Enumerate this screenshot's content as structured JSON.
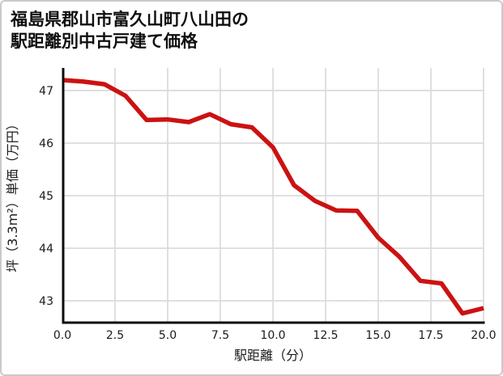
{
  "card": {
    "title_lines": [
      "福島県郡山市富久山町八山田の",
      "駅距離別中古戸建て価格"
    ]
  },
  "chart_data": {
    "type": "line",
    "title": "福島県郡山市富久山町八山田の駅距離別中古戸建て価格",
    "xlabel": "駅距離（分）",
    "ylabel": "坪（3.3m²）単価（万円）",
    "x": [
      0,
      1,
      2,
      3,
      4,
      5,
      6,
      7,
      8,
      9,
      10,
      11,
      12,
      13,
      14,
      15,
      16,
      17,
      18,
      19,
      20
    ],
    "y": [
      47.2,
      47.17,
      47.12,
      46.9,
      46.44,
      46.45,
      46.4,
      46.55,
      46.36,
      46.3,
      45.92,
      45.2,
      44.9,
      44.72,
      44.71,
      44.2,
      43.84,
      43.38,
      43.33,
      42.76,
      42.86
    ],
    "xlim": [
      0,
      20
    ],
    "ylim": [
      42.6,
      47.43
    ],
    "xticks": [
      0,
      2.5,
      5,
      7.5,
      10,
      12.5,
      15,
      17.5,
      20
    ],
    "xtick_labels": [
      "0.0",
      "2.5",
      "5.0",
      "7.5",
      "10.0",
      "12.5",
      "15.0",
      "17.5",
      "20.0"
    ],
    "yticks": [
      43,
      44,
      45,
      46,
      47
    ],
    "ytick_labels": [
      "43",
      "44",
      "45",
      "46",
      "47"
    ],
    "grid": true,
    "legend": false,
    "colors": {
      "line": "#cc1212",
      "grid": "#dcdcdc",
      "spine": "#0d0d0d",
      "text": "#1a1a1a"
    }
  }
}
